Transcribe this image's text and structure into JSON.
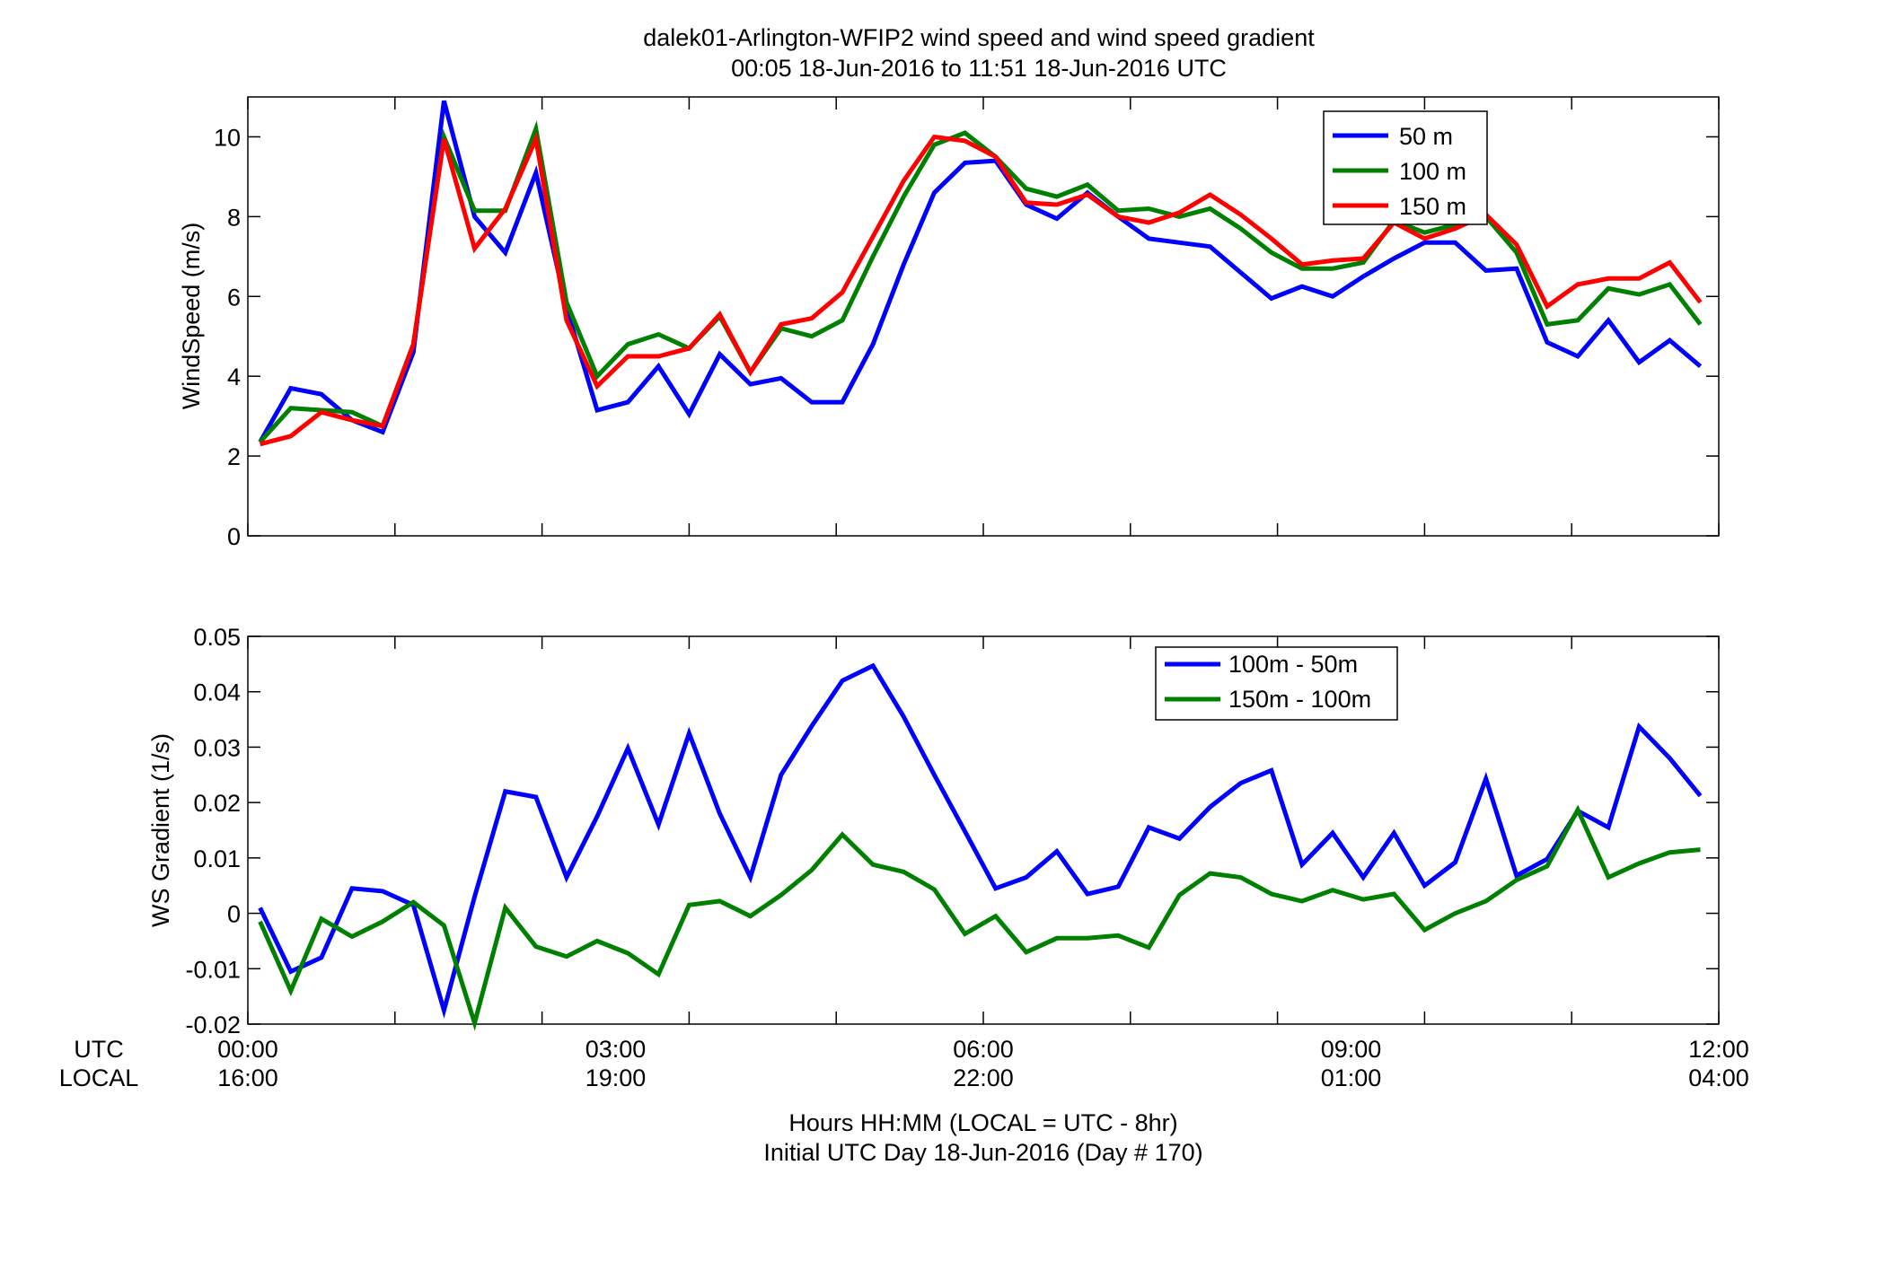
{
  "figure": {
    "title_line1": "dalek01-Arlington-WFIP2  wind speed and wind speed gradient",
    "title_line2": "00:05 18-Jun-2016 to 11:51 18-Jun-2016  UTC",
    "xlabel_line1": "Hours HH:MM  (LOCAL = UTC - 8hr)",
    "xlabel_line2": "Initial UTC Day 18-Jun-2016 (Day # 170)",
    "utc_label": "UTC",
    "local_label": "LOCAL",
    "utc_ticks": [
      "00:00",
      "03:00",
      "06:00",
      "09:00",
      "12:00"
    ],
    "local_ticks": [
      "16:00",
      "19:00",
      "22:00",
      "01:00",
      "04:00"
    ]
  },
  "chart_data": [
    {
      "type": "line",
      "ylabel": "WindSpeed (m/s)",
      "xlim": [
        0,
        12
      ],
      "ylim": [
        0,
        11
      ],
      "yticks": [
        0,
        2,
        4,
        6,
        8,
        10
      ],
      "xticks": [
        0,
        1.2,
        2.4,
        3.6,
        4.8,
        6,
        7.2,
        8.4,
        9.6,
        10.8,
        12
      ],
      "legend_position": "top-right",
      "x": [
        0.1,
        0.35,
        0.6,
        0.85,
        1.1,
        1.35,
        1.6,
        1.85,
        2.1,
        2.35,
        2.6,
        2.85,
        3.1,
        3.35,
        3.6,
        3.85,
        4.1,
        4.35,
        4.6,
        4.85,
        5.1,
        5.35,
        5.6,
        5.85,
        6.1,
        6.35,
        6.6,
        6.85,
        7.1,
        7.35,
        7.6,
        7.85,
        8.1,
        8.35,
        8.6,
        8.85,
        9.1,
        9.35,
        9.6,
        9.85,
        10.1,
        10.35,
        10.6,
        10.85,
        11.1,
        11.35,
        11.6,
        11.85
      ],
      "series": [
        {
          "name": "50 m",
          "color": "#0000ff",
          "values": [
            2.35,
            3.7,
            3.55,
            2.9,
            2.6,
            4.6,
            10.9,
            8.0,
            7.1,
            9.1,
            5.7,
            3.15,
            3.35,
            4.25,
            3.05,
            4.55,
            3.8,
            3.95,
            3.35,
            3.35,
            4.8,
            6.8,
            8.6,
            9.35,
            9.4,
            8.3,
            7.95,
            8.6,
            8.0,
            7.45,
            7.35,
            7.25,
            6.6,
            5.95,
            6.25,
            6.0,
            6.5,
            6.95,
            7.35,
            7.35,
            6.65,
            6.7,
            4.85,
            4.5,
            5.4,
            4.35,
            4.9,
            4.25
          ]
        },
        {
          "name": "100 m",
          "color": "#008000",
          "values": [
            2.35,
            3.2,
            3.15,
            3.1,
            2.75,
            4.8,
            10.0,
            8.15,
            8.15,
            10.2,
            5.85,
            4.0,
            4.8,
            5.05,
            4.7,
            5.5,
            4.1,
            5.2,
            5.0,
            5.4,
            7.0,
            8.5,
            9.8,
            10.1,
            9.5,
            8.7,
            8.5,
            8.8,
            8.15,
            8.2,
            8.0,
            8.2,
            7.7,
            7.1,
            6.7,
            6.7,
            6.85,
            7.9,
            7.6,
            7.8,
            8.0,
            7.1,
            5.3,
            5.4,
            6.2,
            6.05,
            6.3,
            5.3
          ]
        },
        {
          "name": "150 m",
          "color": "#ff0000",
          "values": [
            2.3,
            2.5,
            3.1,
            2.9,
            2.75,
            4.8,
            9.95,
            7.2,
            8.2,
            9.95,
            5.4,
            3.75,
            4.5,
            4.5,
            4.7,
            5.55,
            4.1,
            5.3,
            5.45,
            6.1,
            7.5,
            8.9,
            10.0,
            9.9,
            9.5,
            8.35,
            8.3,
            8.55,
            8.0,
            7.85,
            8.1,
            8.55,
            8.05,
            7.45,
            6.8,
            6.9,
            6.95,
            7.85,
            7.45,
            7.7,
            8.05,
            7.3,
            5.75,
            6.3,
            6.45,
            6.45,
            6.85,
            5.85
          ]
        }
      ]
    },
    {
      "type": "line",
      "ylabel": "WS Gradient (1/s)",
      "xlim": [
        0,
        12
      ],
      "ylim": [
        -0.02,
        0.05
      ],
      "yticks": [
        -0.02,
        -0.01,
        0,
        0.01,
        0.02,
        0.03,
        0.04,
        0.05
      ],
      "ytick_labels": [
        "-0.02",
        "-0.01",
        "0",
        "0.01",
        "0.02",
        "0.03",
        "0.04",
        "0.05"
      ],
      "xticks": [
        0,
        1.2,
        2.4,
        3.6,
        4.8,
        6,
        7.2,
        8.4,
        9.6,
        10.8,
        12
      ],
      "legend_position": "top-center-right",
      "x": [
        0.1,
        0.35,
        0.6,
        0.85,
        1.1,
        1.35,
        1.6,
        1.85,
        2.1,
        2.35,
        2.6,
        2.85,
        3.1,
        3.35,
        3.6,
        3.85,
        4.1,
        4.35,
        4.6,
        4.85,
        5.1,
        5.35,
        5.6,
        5.85,
        6.1,
        6.35,
        6.6,
        6.85,
        7.1,
        7.35,
        7.6,
        7.85,
        8.1,
        8.35,
        8.6,
        8.85,
        9.1,
        9.35,
        9.6,
        9.85,
        10.1,
        10.35,
        10.6,
        10.85,
        11.1,
        11.35,
        11.6,
        11.85
      ],
      "series": [
        {
          "name": "100m - 50m",
          "color": "#0000ff",
          "values": [
            0.001,
            -0.0105,
            -0.008,
            0.0045,
            0.004,
            0.0015,
            -0.0175,
            0.003,
            0.022,
            0.021,
            0.0065,
            0.0175,
            0.0298,
            0.016,
            0.0325,
            0.018,
            0.0065,
            0.025,
            0.0338,
            0.042,
            0.0447,
            0.0355,
            0.025,
            0.0148,
            0.0045,
            0.0065,
            0.0112,
            0.0035,
            0.0048,
            0.0155,
            0.0135,
            0.0192,
            0.0235,
            0.0258,
            0.0088,
            0.0145,
            0.0065,
            0.0145,
            0.005,
            0.0092,
            0.0243,
            0.0068,
            0.0098,
            0.0185,
            0.0155,
            0.0337,
            0.028,
            0.0212
          ]
        },
        {
          "name": "150m - 100m",
          "color": "#008000",
          "values": [
            -0.0015,
            -0.014,
            -0.001,
            -0.0042,
            -0.0015,
            0.002,
            -0.0022,
            -0.0198,
            0.001,
            -0.006,
            -0.0078,
            -0.005,
            -0.0072,
            -0.011,
            0.0015,
            0.0022,
            -0.0005,
            0.0033,
            0.0078,
            0.0142,
            0.0088,
            0.0075,
            0.0043,
            -0.0037,
            -0.0005,
            -0.007,
            -0.0045,
            -0.0045,
            -0.004,
            -0.0062,
            0.0033,
            0.0072,
            0.0065,
            0.0035,
            0.0022,
            0.0042,
            0.0025,
            0.0035,
            -0.003,
            0.0,
            0.0022,
            0.006,
            0.0085,
            0.0187,
            0.0065,
            0.009,
            0.011,
            0.0115
          ]
        }
      ]
    }
  ]
}
